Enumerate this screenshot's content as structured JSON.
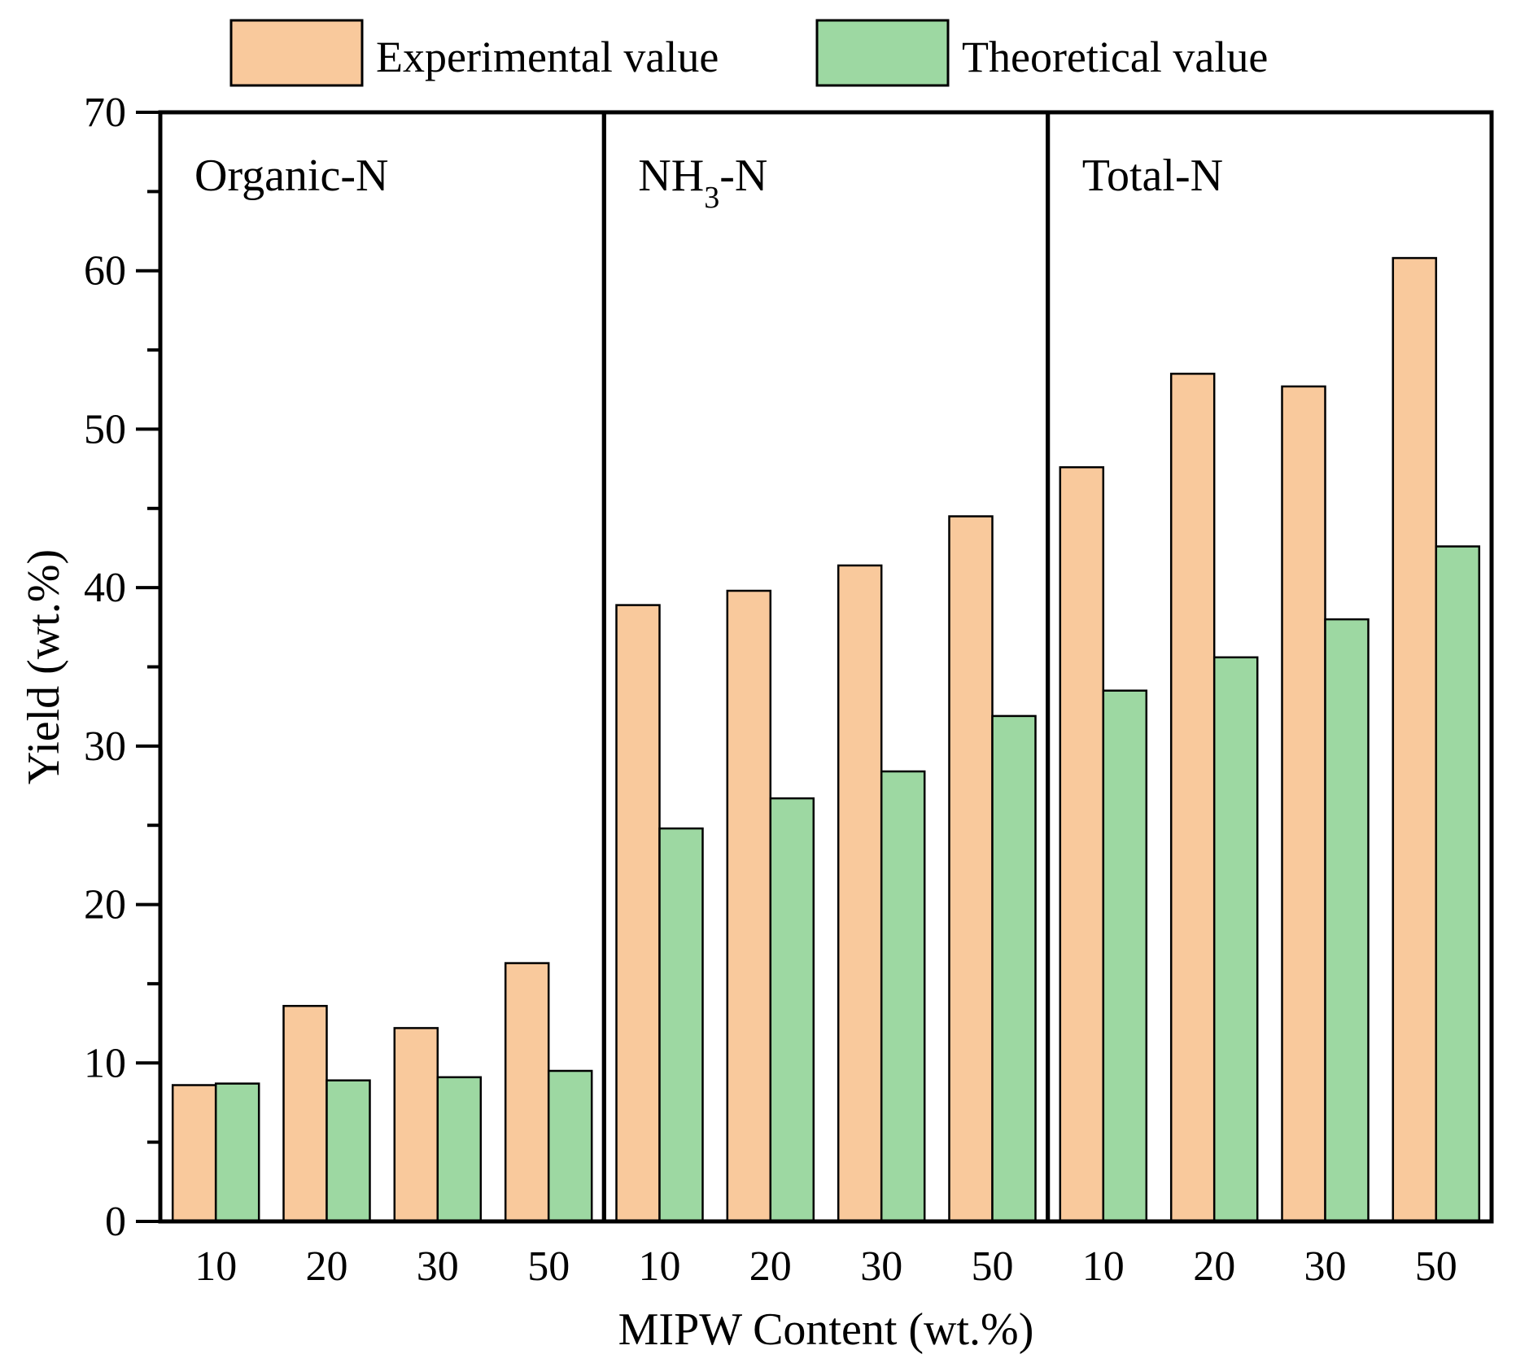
{
  "chart_data": {
    "type": "bar",
    "title": "",
    "xlabel": "MIPW Content (wt.%)",
    "ylabel": "Yield (wt.%)",
    "ylim": [
      0,
      70
    ],
    "yticks": [
      "0",
      "10",
      "20",
      "30",
      "40",
      "50",
      "60",
      "70"
    ],
    "legend": {
      "placement": "top",
      "entries": [
        "Experimental value",
        "Theoretical value"
      ]
    },
    "colors": {
      "Experimental value": "#F9C99C",
      "Theoretical value": "#9DD8A2"
    },
    "grid": false,
    "groups": [
      {
        "label": "Organic-N",
        "categories": [
          "10",
          "20",
          "30",
          "50"
        ],
        "series": [
          {
            "name": "Experimental value",
            "values": [
              8.6,
              13.6,
              12.2,
              16.3
            ]
          },
          {
            "name": "Theoretical value",
            "values": [
              8.7,
              8.9,
              9.1,
              9.5
            ]
          }
        ]
      },
      {
        "label": "NH3-N",
        "categories": [
          "10",
          "20",
          "30",
          "50"
        ],
        "series": [
          {
            "name": "Experimental value",
            "values": [
              38.9,
              39.8,
              41.4,
              44.5
            ]
          },
          {
            "name": "Theoretical value",
            "values": [
              24.8,
              26.7,
              28.4,
              31.9
            ]
          }
        ]
      },
      {
        "label": "Total-N",
        "categories": [
          "10",
          "20",
          "30",
          "50"
        ],
        "series": [
          {
            "name": "Experimental value",
            "values": [
              47.6,
              53.5,
              52.7,
              60.8
            ]
          },
          {
            "name": "Theoretical value",
            "values": [
              33.5,
              35.6,
              38.0,
              42.6
            ]
          }
        ]
      }
    ]
  }
}
